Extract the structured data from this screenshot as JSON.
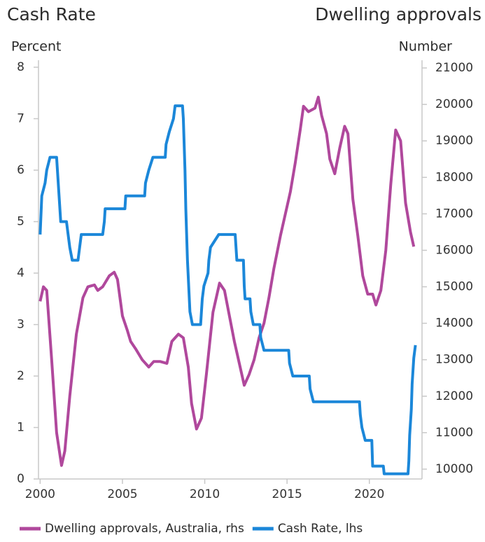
{
  "chart_data": {
    "type": "line",
    "y_title": "Cash Rate",
    "y2_title": "Dwelling approvals",
    "ylabel": "Percent",
    "y2label": "Number",
    "xlim": [
      1999.9,
      2023.2
    ],
    "xticks": [
      2000,
      2005,
      2010,
      2015,
      2020
    ],
    "ylim": [
      0,
      8
    ],
    "yticks": [
      0,
      1,
      2,
      3,
      4,
      5,
      6,
      7,
      8
    ],
    "y2lim": [
      9730,
      21020
    ],
    "y2ticks": [
      10000,
      11000,
      12000,
      13000,
      14000,
      15000,
      16000,
      17000,
      18000,
      19000,
      20000,
      21000
    ],
    "grid": false,
    "legend": "bottom",
    "series": [
      {
        "name": "Dwelling approvals, Australia, rhs",
        "color": "#b0489c",
        "axis": "y2",
        "x": [
          2000.0,
          2000.2,
          2000.4,
          2000.7,
          2001.0,
          2001.3,
          2001.5,
          2001.8,
          2002.2,
          2002.6,
          2002.9,
          2003.3,
          2003.5,
          2003.8,
          2004.2,
          2004.5,
          2004.7,
          2005.0,
          2005.3,
          2005.5,
          2005.8,
          2006.2,
          2006.6,
          2006.9,
          2007.3,
          2007.7,
          2008.0,
          2008.4,
          2008.7,
          2009.0,
          2009.2,
          2009.5,
          2009.8,
          2010.1,
          2010.5,
          2010.9,
          2011.2,
          2011.5,
          2011.8,
          2012.1,
          2012.4,
          2012.7,
          2013.0,
          2013.3,
          2013.6,
          2013.9,
          2014.2,
          2014.6,
          2014.9,
          2015.2,
          2015.5,
          2015.8,
          2016.0,
          2016.3,
          2016.7,
          2016.9,
          2017.1,
          2017.4,
          2017.6,
          2017.9,
          2018.2,
          2018.5,
          2018.7,
          2019.0,
          2019.3,
          2019.6,
          2019.9,
          2020.2,
          2020.4,
          2020.7,
          2021.0,
          2021.3,
          2021.6,
          2021.9,
          2022.2,
          2022.5,
          2022.7
        ],
        "values": [
          14600,
          15000,
          14900,
          13000,
          11000,
          10100,
          10500,
          12000,
          13700,
          14700,
          15000,
          15050,
          14900,
          15000,
          15300,
          15400,
          15200,
          14200,
          13800,
          13500,
          13300,
          13000,
          12800,
          12950,
          12950,
          12900,
          13500,
          13700,
          13600,
          12800,
          11800,
          11100,
          11400,
          12600,
          14300,
          15100,
          14900,
          14200,
          13500,
          12900,
          12300,
          12600,
          13000,
          13600,
          14000,
          14700,
          15500,
          16400,
          17000,
          17600,
          18400,
          19300,
          19950,
          19800,
          19900,
          20200,
          19700,
          19200,
          18500,
          18100,
          18800,
          19400,
          19200,
          17400,
          16400,
          15300,
          14800,
          14800,
          14500,
          14900,
          16000,
          17800,
          19300,
          19000,
          17300,
          16500,
          16100
        ]
      },
      {
        "name": "Cash Rate, lhs",
        "color": "#1b87d9",
        "axis": "y",
        "x": [
          2000.0,
          2000.1,
          2000.3,
          2000.4,
          2000.6,
          2001.0,
          2001.1,
          2001.25,
          2001.6,
          2001.7,
          2001.8,
          2001.95,
          2002.3,
          2002.4,
          2002.5,
          2003.8,
          2003.9,
          2003.95,
          2005.15,
          2005.2,
          2006.35,
          2006.4,
          2006.6,
          2006.85,
          2007.6,
          2007.65,
          2007.85,
          2008.1,
          2008.2,
          2008.65,
          2008.7,
          2008.8,
          2008.85,
          2008.95,
          2009.1,
          2009.25,
          2009.75,
          2009.8,
          2009.85,
          2009.95,
          2010.2,
          2010.25,
          2010.35,
          2010.85,
          2011.85,
          2011.9,
          2011.95,
          2012.35,
          2012.4,
          2012.45,
          2012.75,
          2012.8,
          2012.95,
          2013.35,
          2013.4,
          2013.6,
          2015.1,
          2015.15,
          2015.35,
          2016.35,
          2016.4,
          2016.6,
          2019.4,
          2019.45,
          2019.55,
          2019.75,
          2020.15,
          2020.2,
          2020.85,
          2020.9,
          2022.35,
          2022.4,
          2022.45,
          2022.55,
          2022.6,
          2022.7,
          2022.8
        ],
        "values": [
          4.75,
          5.5,
          5.75,
          6.0,
          6.25,
          6.25,
          5.75,
          5.0,
          5.0,
          4.75,
          4.5,
          4.25,
          4.25,
          4.5,
          4.75,
          4.75,
          5.0,
          5.25,
          5.25,
          5.5,
          5.5,
          5.75,
          6.0,
          6.25,
          6.25,
          6.5,
          6.75,
          7.0,
          7.25,
          7.25,
          7.0,
          6.0,
          5.25,
          4.25,
          3.25,
          3.0,
          3.0,
          3.25,
          3.5,
          3.75,
          4.0,
          4.25,
          4.5,
          4.75,
          4.75,
          4.5,
          4.25,
          4.25,
          3.75,
          3.5,
          3.5,
          3.25,
          3.0,
          3.0,
          2.75,
          2.5,
          2.5,
          2.25,
          2.0,
          2.0,
          1.75,
          1.5,
          1.5,
          1.25,
          1.0,
          0.75,
          0.75,
          0.25,
          0.25,
          0.1,
          0.1,
          0.35,
          0.85,
          1.35,
          1.85,
          2.35,
          2.6
        ]
      }
    ]
  }
}
